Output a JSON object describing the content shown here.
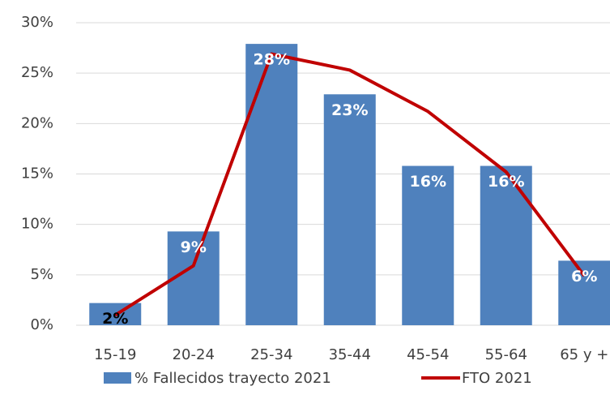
{
  "chart_data": {
    "type": "bar",
    "categories": [
      "15-19",
      "20-24",
      "25-34",
      "35-44",
      "45-54",
      "55-64",
      "65 y +"
    ],
    "series": [
      {
        "name": "% Fallecidos trayecto 2021",
        "type": "bar",
        "color": "#4f81bd",
        "values": [
          2.2,
          9.3,
          27.9,
          22.9,
          15.8,
          15.8,
          6.4
        ],
        "value_labels": [
          "2%",
          "9%",
          "28%",
          "23%",
          "16%",
          "16%",
          "6%"
        ],
        "value_label_colors": [
          "#000000",
          "#ffffff",
          "#ffffff",
          "#ffffff",
          "#ffffff",
          "#ffffff",
          "#ffffff"
        ]
      },
      {
        "name": "FTO 2021",
        "type": "line",
        "color": "#c00000",
        "values": [
          1.0,
          5.9,
          26.9,
          25.3,
          21.2,
          15.2,
          4.9
        ]
      }
    ],
    "ylim": [
      0,
      30
    ],
    "yticks": [
      {
        "value": 0,
        "label": "0%"
      },
      {
        "value": 5,
        "label": "5%"
      },
      {
        "value": 10,
        "label": "10%"
      },
      {
        "value": 15,
        "label": "15%"
      },
      {
        "value": 20,
        "label": "20%"
      },
      {
        "value": 25,
        "label": "25%"
      },
      {
        "value": 30,
        "label": "30%"
      }
    ],
    "grid": true,
    "legend": "bottom"
  }
}
